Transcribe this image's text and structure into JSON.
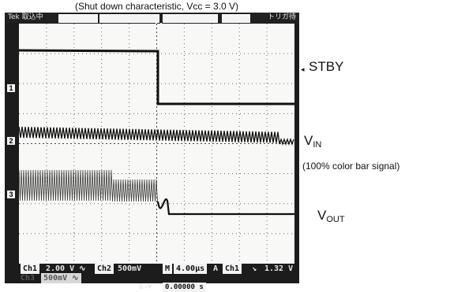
{
  "caption": "(Shut down characteristic, Vcc = 3.0 V)",
  "topbar": {
    "left": "Tek 取込中",
    "right": "トリガ待"
  },
  "trigger_marker": "T",
  "channel_markers": [
    "1",
    "2",
    "3"
  ],
  "signals": {
    "stby": "STBY",
    "vin_main": "V",
    "vin_sub": "IN",
    "vin_note": "(100% color bar signal)",
    "vout_main": "V",
    "vout_sub": "OUT"
  },
  "status": {
    "ch1_label": "Ch1",
    "ch1_scale": "2.00 V ∿",
    "ch2_label": "Ch2",
    "ch2_scale": "500mV",
    "time_label": "M",
    "time_scale": "4.00µs",
    "trig_a": "A",
    "trig_ch": "Ch1",
    "trig_slope": "↘",
    "trig_level": "1.32 V",
    "ch3_label": "Ch3",
    "ch3_scale": "500mV ∿",
    "cursor_label": "B→▼",
    "cursor_value": "0.00000 s"
  },
  "colors": {
    "scope_background": "#1c1c1c",
    "screen_background": "#f8f8f6",
    "trace": "#111111"
  }
}
